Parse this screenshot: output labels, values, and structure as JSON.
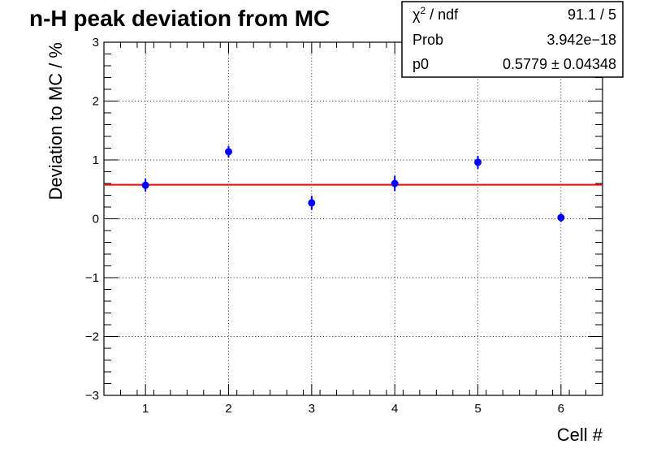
{
  "chart_data": {
    "type": "scatter",
    "title": "n-H peak deviation from MC",
    "xlabel": "Cell #",
    "ylabel": "Deviation to MC / %",
    "xlim": [
      0.5,
      6.5
    ],
    "ylim": [
      -3,
      3
    ],
    "x_ticks": [
      1,
      2,
      3,
      4,
      5,
      6
    ],
    "y_ticks": [
      -3,
      -2,
      -1,
      0,
      1,
      2,
      3
    ],
    "y_tick_labels": [
      "−3",
      "−2",
      "−1",
      "0",
      "1",
      "2",
      "3"
    ],
    "grid": true,
    "marker_color": "#0000ff",
    "fit_color": "#ff0000",
    "points": [
      {
        "x": 1,
        "y": 0.57,
        "yerr": 0.11
      },
      {
        "x": 2,
        "y": 1.14,
        "yerr": 0.1
      },
      {
        "x": 3,
        "y": 0.27,
        "yerr": 0.12
      },
      {
        "x": 4,
        "y": 0.6,
        "yerr": 0.13
      },
      {
        "x": 5,
        "y": 0.96,
        "yerr": 0.11
      },
      {
        "x": 6,
        "y": 0.02,
        "yerr": 0.07
      }
    ],
    "fit": {
      "type": "constant",
      "p0": 0.5779
    }
  },
  "stats_box": {
    "rows": [
      {
        "label_html": "χ<tspan baseline-shift=\"super\" font-size=\"12\">2</tspan> / ndf",
        "value": "91.1 / 5"
      },
      {
        "label": "Prob",
        "value": "3.942e−18"
      },
      {
        "label": "p0",
        "value": "0.5779 ± 0.04348"
      }
    ]
  }
}
